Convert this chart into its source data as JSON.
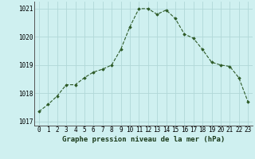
{
  "x": [
    0,
    1,
    2,
    3,
    4,
    5,
    6,
    7,
    8,
    9,
    10,
    11,
    12,
    13,
    14,
    15,
    16,
    17,
    18,
    19,
    20,
    21,
    22,
    23
  ],
  "y": [
    1017.35,
    1017.6,
    1017.9,
    1018.3,
    1018.3,
    1018.55,
    1018.75,
    1018.85,
    1019.0,
    1019.55,
    1020.35,
    1021.0,
    1021.0,
    1020.8,
    1020.95,
    1020.65,
    1020.1,
    1019.95,
    1019.55,
    1019.1,
    1019.0,
    1018.95,
    1018.55,
    1017.7
  ],
  "line_color": "#2d5a27",
  "marker": "D",
  "marker_size": 1.8,
  "bg_color": "#cff0f0",
  "grid_color": "#b0d8d8",
  "xlabel": "Graphe pression niveau de la mer (hPa)",
  "xlabel_color": "#1a3a1a",
  "xlabel_fontsize": 6.5,
  "tick_fontsize": 5.5,
  "ylim": [
    1016.85,
    1021.25
  ],
  "yticks": [
    1017,
    1018,
    1019,
    1020,
    1021
  ],
  "xticks": [
    0,
    1,
    2,
    3,
    4,
    5,
    6,
    7,
    8,
    9,
    10,
    11,
    12,
    13,
    14,
    15,
    16,
    17,
    18,
    19,
    20,
    21,
    22,
    23
  ],
  "line_width": 0.8
}
